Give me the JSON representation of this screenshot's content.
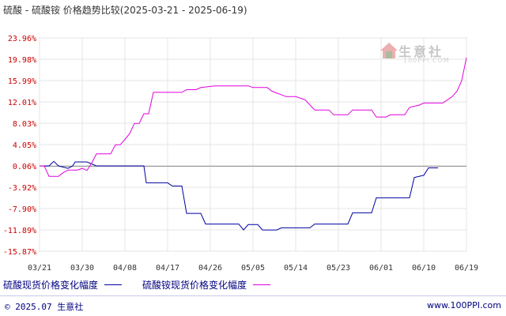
{
  "title": "硫酸 - 硫酸铵 价格趋势比较(2025-03-21 - 2025-06-19)",
  "watermark": {
    "name": "生意社",
    "url": "100PPI.COM"
  },
  "footer": {
    "left": "© 2025.07 生意社",
    "right": "www.100PPI.com"
  },
  "colors": {
    "series1": "#0000a0",
    "series2": "#e000e0",
    "ytick": "#cc0000"
  },
  "chart_data": {
    "type": "line",
    "title": "硫酸 - 硫酸铵 价格趋势比较(2025-03-21 - 2025-06-19)",
    "xlabel": "",
    "ylabel": "",
    "ylim": [
      -15.87,
      23.96
    ],
    "yticks": [
      "23.96%",
      "19.98%",
      "15.99%",
      "12.01%",
      "8.03%",
      "4.05%",
      "0.06%",
      "-3.92%",
      "-7.90%",
      "-11.89%",
      "-15.87%"
    ],
    "xticks": [
      "03/21",
      "03/30",
      "04/08",
      "04/17",
      "04/26",
      "05/05",
      "05/14",
      "05/23",
      "06/01",
      "06/10",
      "06/19"
    ],
    "grid": true,
    "legend_position": "bottom",
    "series": [
      {
        "name": "硫酸现货价格变化幅度",
        "points": [
          [
            0,
            0.06
          ],
          [
            2,
            0.06
          ],
          [
            3,
            0.9
          ],
          [
            4,
            0.06
          ],
          [
            6,
            -0.4
          ],
          [
            7,
            0.06
          ],
          [
            7.5,
            0.8
          ],
          [
            9,
            0.8
          ],
          [
            10,
            0.8
          ],
          [
            12,
            0.06
          ],
          [
            14,
            0.06
          ],
          [
            20,
            0.06
          ],
          [
            22,
            0.06
          ],
          [
            22.5,
            -3.1
          ],
          [
            25,
            -3.1
          ],
          [
            27,
            -3.1
          ],
          [
            28,
            -3.7
          ],
          [
            30,
            -3.7
          ],
          [
            31,
            -8.8
          ],
          [
            34,
            -8.8
          ],
          [
            35,
            -10.8
          ],
          [
            38,
            -10.8
          ],
          [
            42,
            -10.8
          ],
          [
            43,
            -11.9
          ],
          [
            44,
            -10.9
          ],
          [
            46,
            -10.9
          ],
          [
            47,
            -11.9
          ],
          [
            50,
            -11.9
          ],
          [
            51,
            -11.5
          ],
          [
            57,
            -11.5
          ],
          [
            58,
            -10.8
          ],
          [
            65,
            -10.8
          ],
          [
            66,
            -8.7
          ],
          [
            70,
            -8.7
          ],
          [
            71,
            -5.9
          ],
          [
            78,
            -5.9
          ],
          [
            79,
            -2.1
          ],
          [
            81,
            -1.7
          ],
          [
            82,
            -0.3
          ],
          [
            84,
            -0.3
          ]
        ]
      },
      {
        "name": "硫酸铵现货价格变化幅度",
        "points": [
          [
            0,
            0.06
          ],
          [
            1,
            0.06
          ],
          [
            2,
            -1.9
          ],
          [
            4,
            -1.9
          ],
          [
            5,
            -1.2
          ],
          [
            6,
            -0.7
          ],
          [
            8,
            -0.7
          ],
          [
            9,
            -0.4
          ],
          [
            10,
            -0.8
          ],
          [
            11,
            0.6
          ],
          [
            12,
            2.3
          ],
          [
            15,
            2.3
          ],
          [
            16,
            4.0
          ],
          [
            17,
            4.0
          ],
          [
            18,
            5.0
          ],
          [
            19,
            6.1
          ],
          [
            20,
            8.0
          ],
          [
            21,
            8.0
          ],
          [
            22,
            9.8
          ],
          [
            23,
            9.8
          ],
          [
            24,
            13.8
          ],
          [
            27,
            13.8
          ],
          [
            30,
            13.8
          ],
          [
            31,
            14.3
          ],
          [
            33,
            14.3
          ],
          [
            34,
            14.7
          ],
          [
            37,
            15.0
          ],
          [
            40,
            15.0
          ],
          [
            44,
            15.0
          ],
          [
            45,
            14.7
          ],
          [
            48,
            14.7
          ],
          [
            49,
            14.0
          ],
          [
            52,
            13.0
          ],
          [
            54,
            13.0
          ],
          [
            56,
            12.4
          ],
          [
            58,
            10.5
          ],
          [
            61,
            10.5
          ],
          [
            62,
            9.6
          ],
          [
            65,
            9.6
          ],
          [
            66,
            10.5
          ],
          [
            70,
            10.5
          ],
          [
            71,
            9.2
          ],
          [
            73,
            9.2
          ],
          [
            74,
            9.6
          ],
          [
            77,
            9.6
          ],
          [
            78,
            11.0
          ],
          [
            80,
            11.4
          ],
          [
            81,
            11.8
          ],
          [
            85,
            11.8
          ],
          [
            87,
            13.0
          ],
          [
            88,
            14.0
          ],
          [
            89,
            16.0
          ],
          [
            90,
            20.3
          ]
        ]
      }
    ],
    "x_range": [
      0,
      90
    ]
  }
}
